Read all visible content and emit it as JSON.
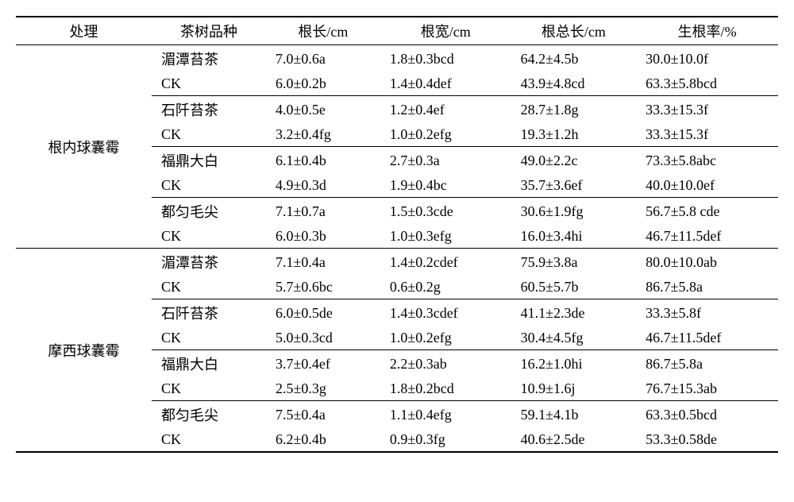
{
  "headers": {
    "treatment": "处理",
    "variety": "茶树品种",
    "root_length": "根长/cm",
    "root_width": "根宽/cm",
    "total_root_length": "根总长/cm",
    "rooting_rate": "生根率/%"
  },
  "groups": [
    {
      "treatment": "根内球囊霉",
      "subgroups": [
        {
          "rows": [
            {
              "variety": "湄潭苔茶",
              "rl": "7.0±0.6a",
              "rw": "1.8±0.3bcd",
              "trl": "64.2±4.5b",
              "rr": "30.0±10.0f"
            },
            {
              "variety": "CK",
              "rl": "6.0±0.2b",
              "rw": "1.4±0.4def",
              "trl": "43.9±4.8cd",
              "rr": "63.3±5.8bcd"
            }
          ]
        },
        {
          "rows": [
            {
              "variety": "石阡苔茶",
              "rl": "4.0±0.5e",
              "rw": "1.2±0.4ef",
              "trl": "28.7±1.8g",
              "rr": "33.3±15.3f"
            },
            {
              "variety": "CK",
              "rl": "3.2±0.4fg",
              "rw": "1.0±0.2efg",
              "trl": "19.3±1.2h",
              "rr": "33.3±15.3f"
            }
          ]
        },
        {
          "rows": [
            {
              "variety": "福鼎大白",
              "rl": "6.1±0.4b",
              "rw": "2.7±0.3a",
              "trl": "49.0±2.2c",
              "rr": "73.3±5.8abc"
            },
            {
              "variety": "CK",
              "rl": "4.9±0.3d",
              "rw": "1.9±0.4bc",
              "trl": "35.7±3.6ef",
              "rr": "40.0±10.0ef"
            }
          ]
        },
        {
          "rows": [
            {
              "variety": "都匀毛尖",
              "rl": "7.1±0.7a",
              "rw": "1.5±0.3cde",
              "trl": "30.6±1.9fg",
              "rr": "56.7±5.8 cde"
            },
            {
              "variety": "CK",
              "rl": "6.0±0.3b",
              "rw": "1.0±0.3efg",
              "trl": "16.0±3.4hi",
              "rr": "46.7±11.5def"
            }
          ]
        }
      ]
    },
    {
      "treatment": "摩西球囊霉",
      "subgroups": [
        {
          "rows": [
            {
              "variety": "湄潭苔茶",
              "rl": "7.1±0.4a",
              "rw": "1.4±0.2cdef",
              "trl": "75.9±3.8a",
              "rr": "80.0±10.0ab"
            },
            {
              "variety": "CK",
              "rl": "5.7±0.6bc",
              "rw": "0.6±0.2g",
              "trl": "60.5±5.7b",
              "rr": "86.7±5.8a"
            }
          ]
        },
        {
          "rows": [
            {
              "variety": "石阡苔茶",
              "rl": "6.0±0.5de",
              "rw": "1.4±0.3cdef",
              "trl": "41.1±2.3de",
              "rr": "33.3±5.8f"
            },
            {
              "variety": "CK",
              "rl": "5.0±0.3cd",
              "rw": "1.0±0.2efg",
              "trl": "30.4±4.5fg",
              "rr": "46.7±11.5def"
            }
          ]
        },
        {
          "rows": [
            {
              "variety": "福鼎大白",
              "rl": "3.7±0.4ef",
              "rw": "2.2±0.3ab",
              "trl": "16.2±1.0hi",
              "rr": "86.7±5.8a"
            },
            {
              "variety": "CK",
              "rl": "2.5±0.3g",
              "rw": "1.8±0.2bcd",
              "trl": "10.9±1.6j",
              "rr": "76.7±15.3ab"
            }
          ]
        },
        {
          "rows": [
            {
              "variety": "都匀毛尖",
              "rl": "7.5±0.4a",
              "rw": "1.1±0.4efg",
              "trl": "59.1±4.1b",
              "rr": "63.3±0.5bcd"
            },
            {
              "variety": "CK",
              "rl": "6.2±0.4b",
              "rw": "0.9±0.3fg",
              "trl": "40.6±2.5de",
              "rr": "53.3±0.58de"
            }
          ]
        }
      ]
    }
  ]
}
